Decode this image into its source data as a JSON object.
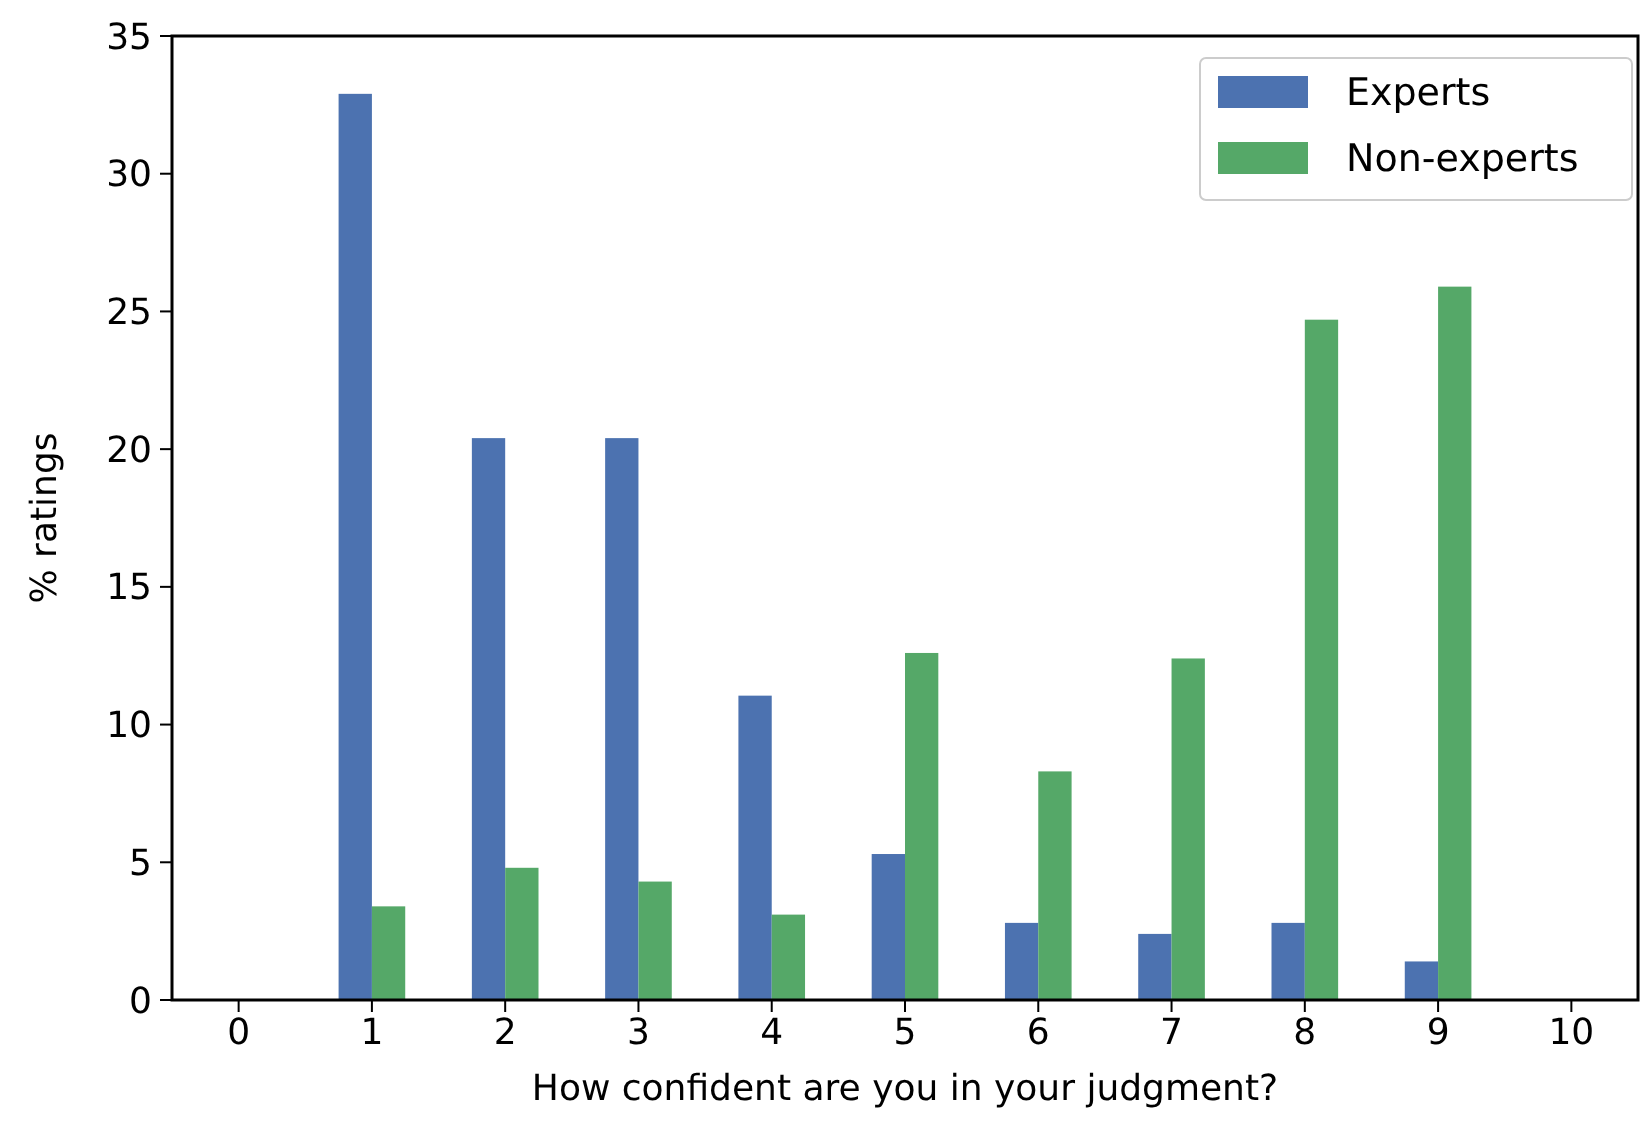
{
  "chart_data": {
    "type": "bar",
    "xlabel": "How confident are you in your judgment?",
    "ylabel": "% ratings",
    "x": [
      1,
      2,
      3,
      4,
      5,
      6,
      7,
      8,
      9
    ],
    "series": [
      {
        "name": "Experts",
        "color": "#4c72b0",
        "values": [
          32.9,
          20.4,
          20.4,
          11.05,
          5.3,
          2.8,
          2.4,
          2.8,
          1.4
        ]
      },
      {
        "name": "Non-experts",
        "color": "#55a868",
        "values": [
          3.4,
          4.8,
          4.3,
          3.1,
          12.6,
          8.3,
          12.4,
          24.7,
          25.9
        ]
      }
    ],
    "xlim": [
      -0.5,
      10.5
    ],
    "xticks": [
      0,
      1,
      2,
      3,
      4,
      5,
      6,
      7,
      8,
      9,
      10
    ],
    "ylim": [
      0,
      35
    ],
    "yticks": [
      0,
      5,
      10,
      15,
      20,
      25,
      30,
      35
    ],
    "grid": false,
    "legend": "top right"
  }
}
